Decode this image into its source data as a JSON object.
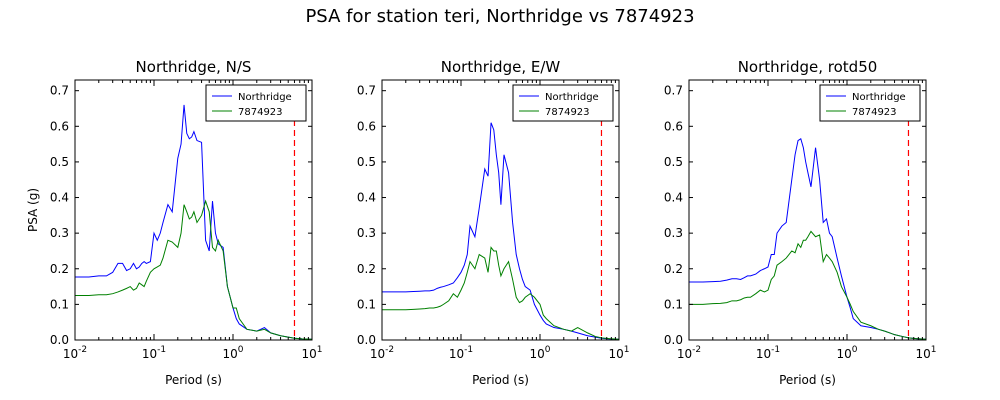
{
  "figure_title": "PSA for station teri, Northridge vs 7874923",
  "colors": {
    "series1": "#0000ff",
    "series2": "#008000",
    "marker": "#ff0000"
  },
  "chart_data": [
    {
      "type": "line",
      "title": "Northridge, N/S",
      "xlabel": "Period (s)",
      "ylabel": "PSA (g)",
      "xscale": "log",
      "xlim": [
        0.01,
        10
      ],
      "ylim": [
        0,
        0.73
      ],
      "yticks": [
        "0.0",
        "0.1",
        "0.2",
        "0.3",
        "0.4",
        "0.5",
        "0.6",
        "0.7"
      ],
      "xticks": [
        {
          "base": "10",
          "exp": "-2",
          "value": 0.01
        },
        {
          "base": "10",
          "exp": "-1",
          "value": 0.1
        },
        {
          "base": "10",
          "exp": "0",
          "value": 1
        },
        {
          "base": "10",
          "exp": "1",
          "value": 10
        }
      ],
      "legend_position": "top-right",
      "vline": 6.0,
      "series": [
        {
          "name": "Northridge",
          "color": "#0000ff",
          "x": [
            0.01,
            0.015,
            0.02,
            0.025,
            0.03,
            0.035,
            0.04,
            0.045,
            0.05,
            0.055,
            0.06,
            0.065,
            0.07,
            0.075,
            0.08,
            0.09,
            0.1,
            0.11,
            0.12,
            0.13,
            0.15,
            0.17,
            0.2,
            0.22,
            0.24,
            0.26,
            0.28,
            0.3,
            0.32,
            0.35,
            0.4,
            0.45,
            0.5,
            0.55,
            0.6,
            0.65,
            0.75,
            0.85,
            1.0,
            1.1,
            1.2,
            1.5,
            2.0,
            2.5,
            3.0,
            4.0,
            5.0,
            6.0,
            7.5,
            10.0
          ],
          "y": [
            0.177,
            0.177,
            0.18,
            0.18,
            0.19,
            0.215,
            0.215,
            0.195,
            0.2,
            0.215,
            0.2,
            0.205,
            0.215,
            0.22,
            0.215,
            0.22,
            0.3,
            0.28,
            0.3,
            0.33,
            0.38,
            0.36,
            0.51,
            0.55,
            0.66,
            0.58,
            0.565,
            0.57,
            0.585,
            0.56,
            0.555,
            0.28,
            0.25,
            0.39,
            0.3,
            0.27,
            0.26,
            0.15,
            0.09,
            0.06,
            0.045,
            0.03,
            0.025,
            0.035,
            0.02,
            0.012,
            0.008,
            0.005,
            0.003,
            0.002
          ]
        },
        {
          "name": "7874923",
          "color": "#008000",
          "x": [
            0.01,
            0.015,
            0.02,
            0.025,
            0.03,
            0.035,
            0.04,
            0.045,
            0.05,
            0.055,
            0.06,
            0.065,
            0.07,
            0.075,
            0.08,
            0.09,
            0.1,
            0.11,
            0.12,
            0.13,
            0.15,
            0.17,
            0.2,
            0.22,
            0.24,
            0.26,
            0.28,
            0.3,
            0.32,
            0.35,
            0.4,
            0.45,
            0.5,
            0.55,
            0.6,
            0.65,
            0.75,
            0.85,
            1.0,
            1.1,
            1.2,
            1.5,
            2.0,
            2.5,
            3.0,
            4.0,
            5.0,
            6.0,
            7.5,
            10.0
          ],
          "y": [
            0.125,
            0.125,
            0.127,
            0.127,
            0.13,
            0.135,
            0.14,
            0.145,
            0.15,
            0.14,
            0.145,
            0.16,
            0.155,
            0.15,
            0.165,
            0.19,
            0.2,
            0.205,
            0.21,
            0.23,
            0.28,
            0.275,
            0.26,
            0.3,
            0.38,
            0.36,
            0.34,
            0.345,
            0.36,
            0.33,
            0.35,
            0.39,
            0.36,
            0.26,
            0.25,
            0.28,
            0.25,
            0.15,
            0.09,
            0.09,
            0.06,
            0.03,
            0.025,
            0.03,
            0.02,
            0.012,
            0.008,
            0.005,
            0.003,
            0.002
          ]
        }
      ]
    },
    {
      "type": "line",
      "title": "Northridge, E/W",
      "xlabel": "Period (s)",
      "ylabel": "",
      "xscale": "log",
      "xlim": [
        0.01,
        10
      ],
      "ylim": [
        0,
        0.73
      ],
      "yticks": [
        "0.0",
        "0.1",
        "0.2",
        "0.3",
        "0.4",
        "0.5",
        "0.6",
        "0.7"
      ],
      "xticks": [
        {
          "base": "10",
          "exp": "-2",
          "value": 0.01
        },
        {
          "base": "10",
          "exp": "-1",
          "value": 0.1
        },
        {
          "base": "10",
          "exp": "0",
          "value": 1
        },
        {
          "base": "10",
          "exp": "1",
          "value": 10
        }
      ],
      "legend_position": "top-right",
      "vline": 6.0,
      "series": [
        {
          "name": "Northridge",
          "color": "#0000ff",
          "x": [
            0.01,
            0.015,
            0.02,
            0.025,
            0.03,
            0.035,
            0.04,
            0.045,
            0.05,
            0.055,
            0.06,
            0.07,
            0.08,
            0.09,
            0.1,
            0.11,
            0.12,
            0.13,
            0.15,
            0.17,
            0.2,
            0.22,
            0.24,
            0.26,
            0.28,
            0.3,
            0.32,
            0.35,
            0.4,
            0.45,
            0.5,
            0.55,
            0.6,
            0.65,
            0.75,
            0.85,
            1.0,
            1.1,
            1.2,
            1.5,
            2.0,
            2.5,
            3.0,
            4.0,
            5.0,
            6.0,
            7.5,
            10.0
          ],
          "y": [
            0.135,
            0.135,
            0.135,
            0.136,
            0.137,
            0.138,
            0.138,
            0.14,
            0.145,
            0.148,
            0.15,
            0.155,
            0.16,
            0.175,
            0.19,
            0.21,
            0.24,
            0.32,
            0.29,
            0.37,
            0.48,
            0.46,
            0.61,
            0.59,
            0.52,
            0.47,
            0.38,
            0.52,
            0.47,
            0.33,
            0.24,
            0.2,
            0.17,
            0.15,
            0.14,
            0.1,
            0.07,
            0.055,
            0.045,
            0.035,
            0.03,
            0.025,
            0.02,
            0.012,
            0.008,
            0.005,
            0.003,
            0.002
          ]
        },
        {
          "name": "7874923",
          "color": "#008000",
          "x": [
            0.01,
            0.015,
            0.02,
            0.025,
            0.03,
            0.035,
            0.04,
            0.045,
            0.05,
            0.055,
            0.06,
            0.07,
            0.08,
            0.09,
            0.1,
            0.11,
            0.12,
            0.13,
            0.15,
            0.17,
            0.2,
            0.22,
            0.24,
            0.26,
            0.28,
            0.3,
            0.32,
            0.35,
            0.4,
            0.45,
            0.5,
            0.55,
            0.6,
            0.65,
            0.75,
            0.85,
            1.0,
            1.1,
            1.2,
            1.5,
            2.0,
            2.5,
            3.0,
            4.0,
            5.0,
            6.0,
            7.5,
            10.0
          ],
          "y": [
            0.085,
            0.085,
            0.085,
            0.086,
            0.087,
            0.088,
            0.09,
            0.09,
            0.092,
            0.095,
            0.1,
            0.11,
            0.13,
            0.12,
            0.14,
            0.16,
            0.19,
            0.22,
            0.2,
            0.24,
            0.23,
            0.19,
            0.26,
            0.25,
            0.25,
            0.21,
            0.18,
            0.2,
            0.22,
            0.17,
            0.12,
            0.105,
            0.11,
            0.12,
            0.13,
            0.12,
            0.1,
            0.07,
            0.06,
            0.04,
            0.03,
            0.025,
            0.035,
            0.02,
            0.01,
            0.006,
            0.004,
            0.002
          ]
        }
      ]
    },
    {
      "type": "line",
      "title": "Northridge, rotd50",
      "xlabel": "Period (s)",
      "ylabel": "",
      "xscale": "log",
      "xlim": [
        0.01,
        10
      ],
      "ylim": [
        0,
        0.73
      ],
      "yticks": [
        "0.0",
        "0.1",
        "0.2",
        "0.3",
        "0.4",
        "0.5",
        "0.6",
        "0.7"
      ],
      "xticks": [
        {
          "base": "10",
          "exp": "-2",
          "value": 0.01
        },
        {
          "base": "10",
          "exp": "-1",
          "value": 0.1
        },
        {
          "base": "10",
          "exp": "0",
          "value": 1
        },
        {
          "base": "10",
          "exp": "1",
          "value": 10
        }
      ],
      "legend_position": "top-right",
      "vline": 6.0,
      "series": [
        {
          "name": "Northridge",
          "color": "#0000ff",
          "x": [
            0.01,
            0.015,
            0.02,
            0.025,
            0.03,
            0.035,
            0.04,
            0.045,
            0.05,
            0.055,
            0.06,
            0.07,
            0.08,
            0.09,
            0.1,
            0.11,
            0.12,
            0.13,
            0.15,
            0.17,
            0.2,
            0.22,
            0.24,
            0.26,
            0.28,
            0.3,
            0.32,
            0.35,
            0.4,
            0.45,
            0.5,
            0.55,
            0.6,
            0.65,
            0.75,
            0.85,
            1.0,
            1.1,
            1.2,
            1.5,
            2.0,
            2.5,
            3.0,
            4.0,
            5.0,
            6.0,
            7.5,
            10.0
          ],
          "y": [
            0.163,
            0.163,
            0.164,
            0.165,
            0.168,
            0.172,
            0.172,
            0.17,
            0.175,
            0.18,
            0.18,
            0.185,
            0.195,
            0.2,
            0.205,
            0.24,
            0.24,
            0.3,
            0.32,
            0.33,
            0.45,
            0.52,
            0.56,
            0.565,
            0.54,
            0.5,
            0.47,
            0.43,
            0.54,
            0.45,
            0.33,
            0.34,
            0.3,
            0.29,
            0.23,
            0.18,
            0.12,
            0.09,
            0.06,
            0.04,
            0.035,
            0.03,
            0.025,
            0.015,
            0.01,
            0.006,
            0.004,
            0.002
          ]
        },
        {
          "name": "7874923",
          "color": "#008000",
          "x": [
            0.01,
            0.015,
            0.02,
            0.025,
            0.03,
            0.035,
            0.04,
            0.045,
            0.05,
            0.055,
            0.06,
            0.07,
            0.08,
            0.09,
            0.1,
            0.11,
            0.12,
            0.13,
            0.15,
            0.17,
            0.2,
            0.22,
            0.24,
            0.26,
            0.28,
            0.3,
            0.32,
            0.35,
            0.4,
            0.45,
            0.5,
            0.55,
            0.6,
            0.65,
            0.75,
            0.85,
            1.0,
            1.1,
            1.2,
            1.5,
            2.0,
            2.5,
            3.0,
            4.0,
            5.0,
            6.0,
            7.5,
            10.0
          ],
          "y": [
            0.1,
            0.1,
            0.102,
            0.103,
            0.105,
            0.11,
            0.11,
            0.113,
            0.118,
            0.12,
            0.12,
            0.13,
            0.14,
            0.135,
            0.14,
            0.17,
            0.18,
            0.21,
            0.22,
            0.23,
            0.25,
            0.245,
            0.27,
            0.26,
            0.28,
            0.28,
            0.29,
            0.305,
            0.29,
            0.295,
            0.22,
            0.24,
            0.23,
            0.22,
            0.19,
            0.15,
            0.12,
            0.1,
            0.08,
            0.05,
            0.04,
            0.03,
            0.025,
            0.015,
            0.01,
            0.006,
            0.004,
            0.002
          ]
        }
      ]
    }
  ]
}
